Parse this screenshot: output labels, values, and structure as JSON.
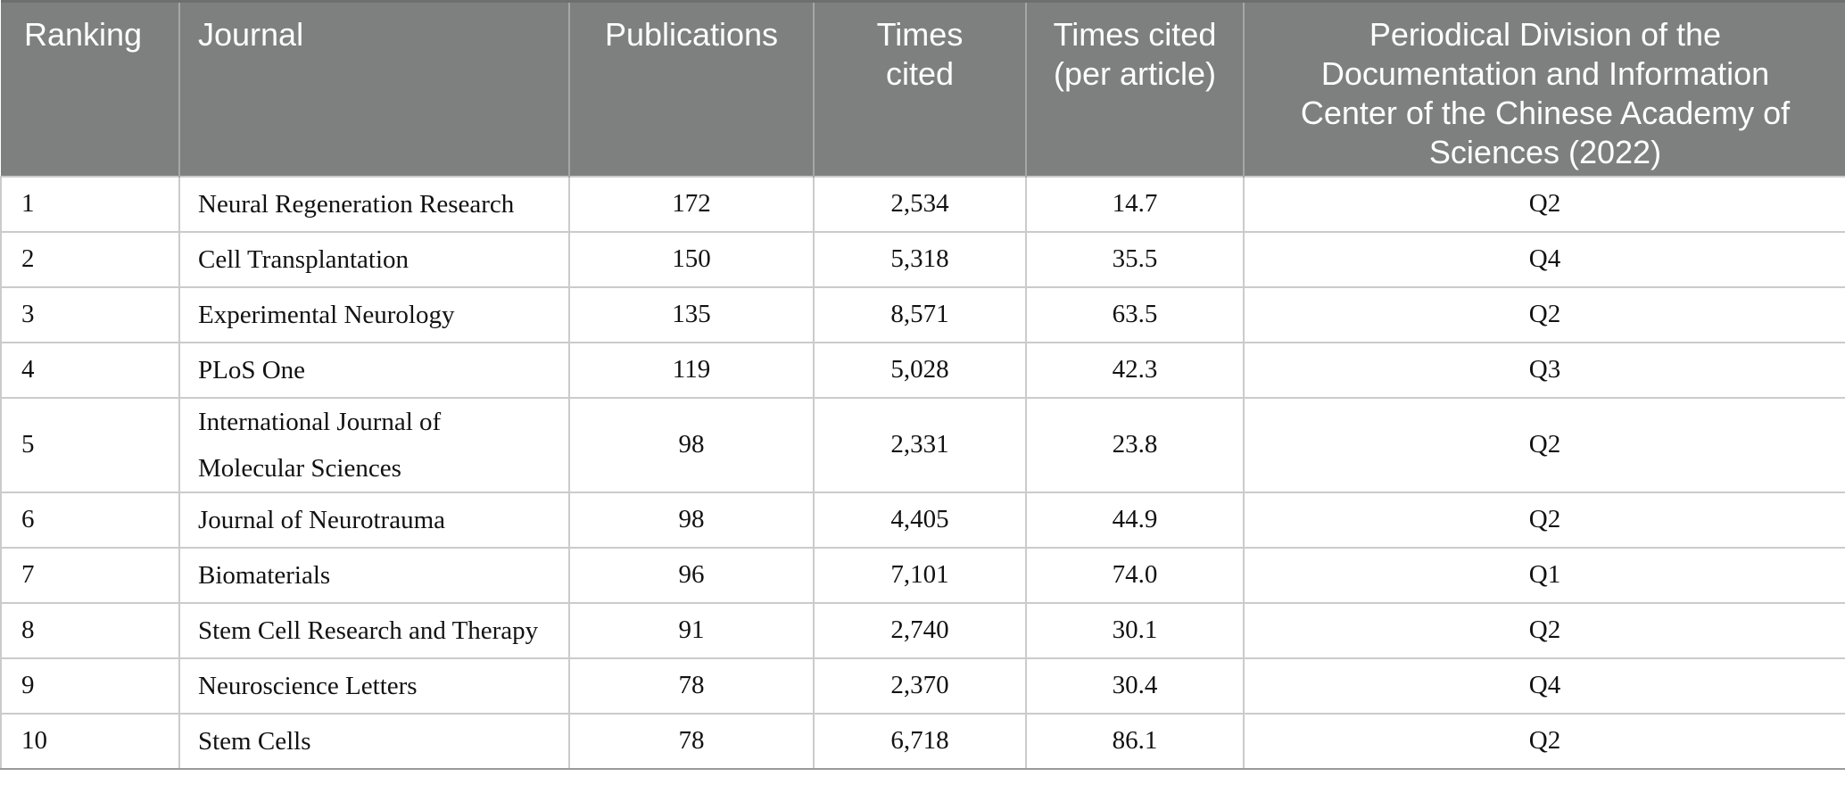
{
  "table": {
    "columns": [
      {
        "label": "Ranking"
      },
      {
        "label": "Journal"
      },
      {
        "label": "Publications"
      },
      {
        "label": "Times cited"
      },
      {
        "label": "Times cited (per article)"
      },
      {
        "label": "Periodical Division of the Documentation and Information Center of the Chinese Academy of Sciences (2022)"
      }
    ],
    "rows": [
      [
        "1",
        "Neural Regeneration Research",
        "172",
        "2,534",
        "14.7",
        "Q2"
      ],
      [
        "2",
        "Cell Transplantation",
        "150",
        "5,318",
        "35.5",
        "Q4"
      ],
      [
        "3",
        "Experimental Neurology",
        "135",
        "8,571",
        "63.5",
        "Q2"
      ],
      [
        "4",
        "PLoS One",
        "119",
        "5,028",
        "42.3",
        "Q3"
      ],
      [
        "5",
        "International Journal of Molecular Sciences",
        "98",
        "2,331",
        "23.8",
        "Q2"
      ],
      [
        "6",
        "Journal of Neurotrauma",
        "98",
        "4,405",
        "44.9",
        "Q2"
      ],
      [
        "7",
        "Biomaterials",
        "96",
        "7,101",
        "74.0",
        "Q1"
      ],
      [
        "8",
        "Stem Cell Research and Therapy",
        "91",
        "2,740",
        "30.1",
        "Q2"
      ],
      [
        "9",
        "Neuroscience Letters",
        "78",
        "2,370",
        "30.4",
        "Q4"
      ],
      [
        "10",
        "Stem Cells",
        "78",
        "6,718",
        "86.1",
        "Q2"
      ]
    ]
  },
  "colors": {
    "header_bg": "#7e8080",
    "header_text": "#ffffff",
    "body_text": "#121212",
    "grid_line": "#cbcbcb",
    "table_top_border": "#6e7070",
    "table_bottom_border": "#9a9a9a"
  }
}
